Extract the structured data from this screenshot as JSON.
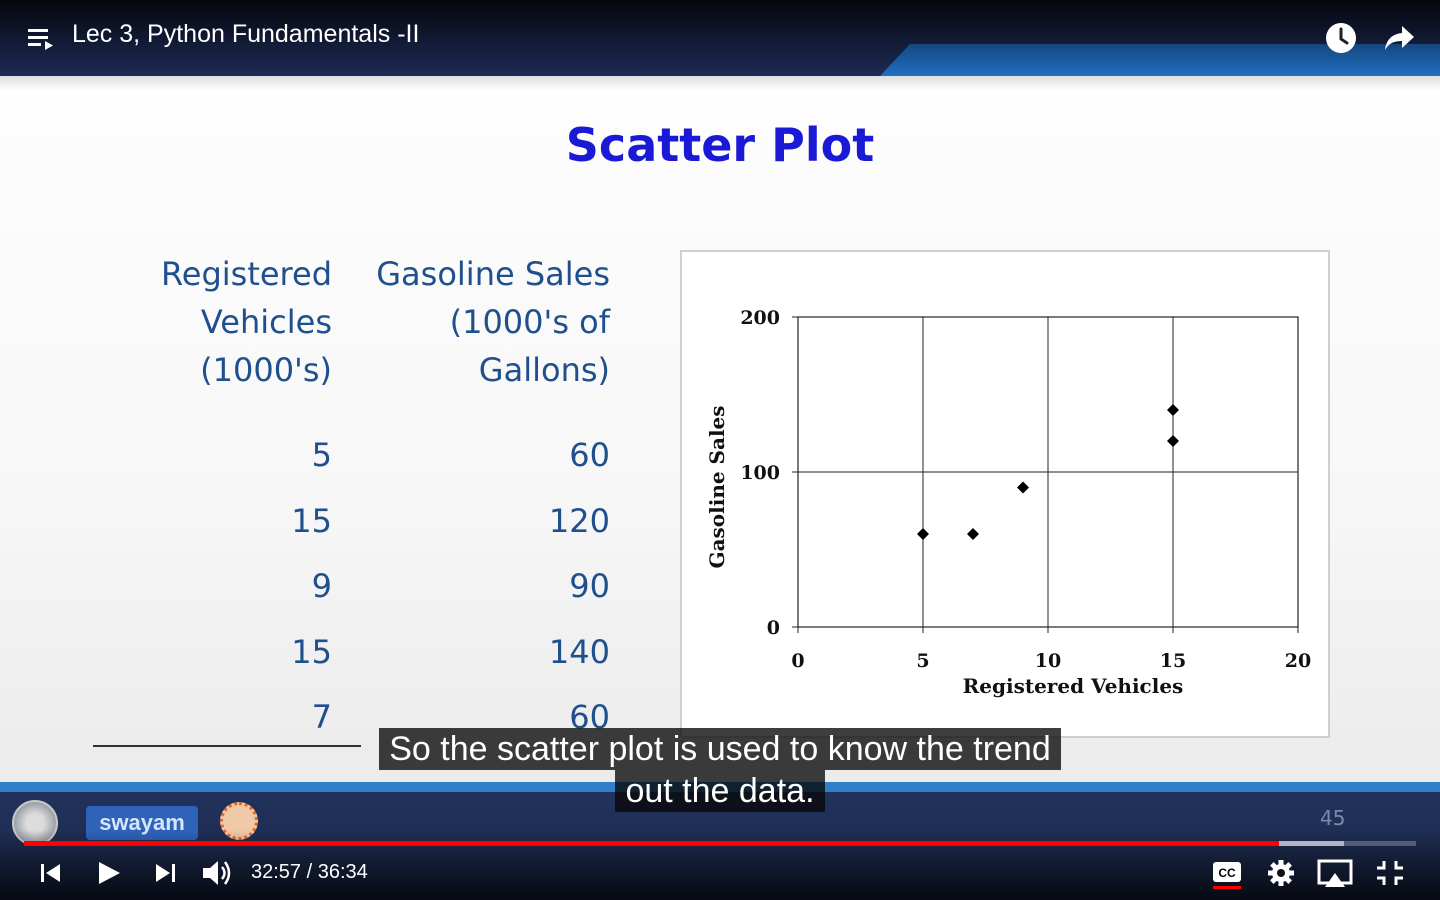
{
  "player": {
    "title": "Lec 3, Python Fundamentals -II",
    "time_current": "32:57",
    "time_separator": " / ",
    "time_total": "36:34",
    "progress_fraction": 0.9018,
    "buffer_fraction": 0.948,
    "accent_color": "#ff0000",
    "icons": [
      "playlist-icon",
      "watch-later-icon",
      "share-icon",
      "previous-icon",
      "play-icon",
      "next-icon",
      "volume-icon",
      "captions-icon",
      "settings-icon",
      "cast-icon",
      "exit-fullscreen-icon"
    ]
  },
  "slide": {
    "title": "Scatter Plot",
    "col_a_header": [
      "Registered",
      "Vehicles",
      "(1000's)"
    ],
    "col_b_header": [
      "Gasoline Sales",
      "(1000's of",
      "Gallons)"
    ],
    "rows": [
      {
        "a": "5",
        "b": "60"
      },
      {
        "a": "15",
        "b": "120"
      },
      {
        "a": "9",
        "b": "90"
      },
      {
        "a": "15",
        "b": "140"
      },
      {
        "a": "7",
        "b": "60"
      }
    ],
    "brand": "swayam",
    "slide_number": "45"
  },
  "captions": {
    "line1": "So the scatter plot is used to know the trend",
    "line2": "out the data."
  },
  "chart_data": {
    "type": "scatter",
    "xlabel": "Registered Vehicles",
    "ylabel": "Gasoline Sales",
    "xlim": [
      0,
      20
    ],
    "ylim": [
      0,
      200
    ],
    "xticks": [
      0,
      5,
      10,
      15,
      20
    ],
    "yticks": [
      0,
      100,
      200
    ],
    "grid": true,
    "points": [
      {
        "x": 5,
        "y": 60
      },
      {
        "x": 7,
        "y": 60
      },
      {
        "x": 9,
        "y": 90
      },
      {
        "x": 15,
        "y": 120
      },
      {
        "x": 15,
        "y": 140
      }
    ]
  }
}
